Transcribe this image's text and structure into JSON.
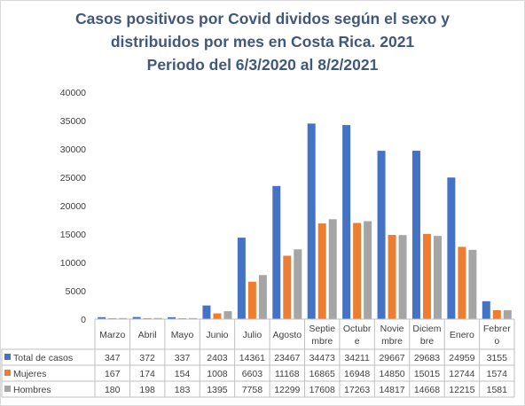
{
  "chart_data": {
    "type": "bar",
    "title_lines": [
      "Casos positivos por Covid dividos según el sexo y",
      "distribuidos por mes en Costa Rica. 2021",
      "Periodo del 6/3/2020 al 8/2/2021"
    ],
    "categories": [
      [
        "Marzo"
      ],
      [
        "Abril"
      ],
      [
        "Mayo"
      ],
      [
        "Junio"
      ],
      [
        "Julio"
      ],
      [
        "Agosto"
      ],
      [
        "Septie",
        "mbre"
      ],
      [
        "Octubr",
        "e"
      ],
      [
        "Novie",
        "mbre"
      ],
      [
        "Diciem",
        "bre"
      ],
      [
        "Enero"
      ],
      [
        "Febrer",
        "o"
      ]
    ],
    "series": [
      {
        "name": "Total de casos",
        "color": "#4472c4",
        "values": [
          347,
          372,
          337,
          2403,
          14361,
          23467,
          34473,
          34211,
          29667,
          29683,
          24959,
          3155
        ]
      },
      {
        "name": "Mujeres",
        "color": "#ed7d31",
        "values": [
          167,
          174,
          154,
          1008,
          6603,
          11168,
          16865,
          16948,
          14850,
          15015,
          12744,
          1574
        ]
      },
      {
        "name": "Hombres",
        "color": "#a5a5a5",
        "values": [
          180,
          198,
          183,
          1395,
          7758,
          12299,
          17608,
          17263,
          14817,
          14668,
          12215,
          1581
        ]
      }
    ],
    "ylim": [
      0,
      40000
    ],
    "yticks": [
      0,
      5000,
      10000,
      15000,
      20000,
      25000,
      30000,
      35000,
      40000
    ],
    "grid": false,
    "legend": "data-table"
  }
}
